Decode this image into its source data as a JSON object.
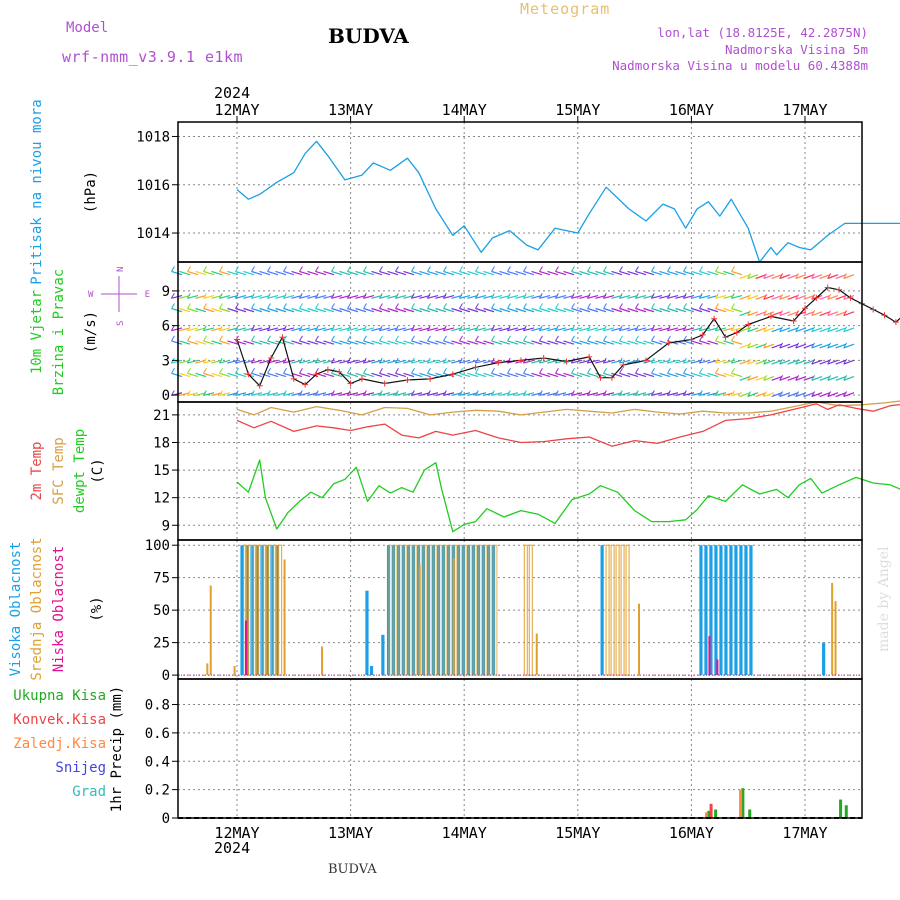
{
  "header": {
    "model_label": "Model",
    "model_name": "wrf-nmm_v3.9.1 e1km",
    "station_title": "BUDVA",
    "product": "Meteogram",
    "coords": "lon,lat (18.8125E, 42.2875N)",
    "elevation": "Nadmorska Visina 5m",
    "model_elevation": "Nadmorska Visina u modelu 60.4388m",
    "year_top": "2024",
    "year_bottom": "2024",
    "bottom_label": "BUDVA",
    "watermark": "made by Angel"
  },
  "colors": {
    "pressure": "#1aa0e6",
    "wind_speed": "#111111",
    "t2m": "#ee4444",
    "tsfc": "#d4a04a",
    "dewpt": "#22cc22",
    "cloud_high": "#1aa0e6",
    "cloud_mid": "#e0a030",
    "cloud_low": "#e01090",
    "precip_total": "#22aa22",
    "precip_conv": "#ee4444",
    "precip_frz": "#ff8844",
    "precip_snow": "#4444dd",
    "precip_grad": "#33bbbb"
  },
  "chart_data": [
    {
      "type": "line",
      "panel": "pressure",
      "ylabel": [
        "Pritisak na nivou mora",
        "(hPa)"
      ],
      "yticks": [
        1014,
        1016,
        1018
      ],
      "ylim": [
        1012.8,
        1018.6
      ],
      "grid": true,
      "x_days": [
        "12MAY",
        "13MAY",
        "14MAY",
        "15MAY",
        "16MAY",
        "17MAY"
      ],
      "series": [
        {
          "name": "Pritisak na nivou mora",
          "x": [
            0,
            0.1,
            0.2,
            0.35,
            0.5,
            0.6,
            0.7,
            0.8,
            0.95,
            1.1,
            1.2,
            1.35,
            1.5,
            1.6,
            1.75,
            1.9,
            2.0,
            2.15,
            2.25,
            2.4,
            2.55,
            2.65,
            2.8,
            3.0,
            3.1,
            3.25,
            3.45,
            3.6,
            3.75,
            3.85,
            3.95,
            4.05,
            4.15,
            4.25,
            4.35,
            4.5,
            4.6,
            4.7,
            4.75,
            4.85,
            4.95,
            5.05,
            5.2,
            5.35,
            5.5,
            5.6,
            5.7,
            5.85,
            5.95
          ],
          "values": [
            1015.8,
            1015.4,
            1015.6,
            1016.1,
            1016.5,
            1017.3,
            1017.8,
            1017.2,
            1016.2,
            1016.4,
            1016.9,
            1016.6,
            1017.1,
            1016.5,
            1015.0,
            1013.9,
            1014.3,
            1013.2,
            1013.8,
            1014.1,
            1013.5,
            1013.3,
            1014.2,
            1014.0,
            1014.8,
            1015.9,
            1015.0,
            1014.5,
            1015.2,
            1015.0,
            1014.2,
            1015.0,
            1015.3,
            1014.7,
            1015.4,
            1014.2,
            1012.8,
            1013.4,
            1013.1,
            1013.6,
            1013.4,
            1013.3,
            1013.9,
            1014.4,
            1014.4,
            1014.4,
            1014.4,
            1014.4,
            1014.4
          ]
        }
      ]
    },
    {
      "type": "line",
      "panel": "wind",
      "ylabel": [
        "10m Vjetar",
        "Brzina i Pravac",
        "(m/s)"
      ],
      "compass": {
        "n": "N",
        "s": "S",
        "e": "E",
        "w": "W"
      },
      "yticks": [
        0,
        3,
        6,
        9
      ],
      "ylim": [
        -0.6,
        11.5
      ],
      "grid": true,
      "series": [
        {
          "name": "Brzina",
          "x": [
            0,
            0.1,
            0.2,
            0.3,
            0.4,
            0.5,
            0.6,
            0.7,
            0.8,
            0.9,
            1.0,
            1.1,
            1.3,
            1.5,
            1.7,
            1.9,
            2.1,
            2.3,
            2.5,
            2.7,
            2.9,
            3.1,
            3.2,
            3.3,
            3.4,
            3.6,
            3.8,
            4.0,
            4.1,
            4.2,
            4.3,
            4.4,
            4.5,
            4.7,
            4.9,
            5.0,
            5.1,
            5.2,
            5.3,
            5.4,
            5.5,
            5.6,
            5.7,
            5.8,
            5.9
          ],
          "values": [
            4.8,
            1.8,
            0.8,
            3.2,
            5.0,
            1.4,
            0.9,
            1.8,
            2.2,
            2.0,
            1.0,
            1.4,
            1.0,
            1.3,
            1.4,
            1.8,
            2.4,
            2.8,
            3.0,
            3.2,
            2.9,
            3.3,
            1.5,
            1.5,
            2.6,
            3.0,
            4.5,
            4.8,
            5.2,
            6.6,
            5.0,
            5.4,
            6.1,
            6.8,
            6.4,
            7.5,
            8.4,
            9.3,
            9.1,
            8.4,
            7.9,
            7.4,
            6.9,
            6.3,
            7.2
          ]
        }
      ]
    },
    {
      "type": "line",
      "panel": "temperature",
      "ylabel": [
        "2m Temp",
        "SFC Temp",
        "dewpt Temp",
        "(C)"
      ],
      "yticks": [
        9,
        12,
        15,
        18,
        21
      ],
      "ylim": [
        7.4,
        22.4
      ],
      "grid": true,
      "series": [
        {
          "name": "2m Temp",
          "x": [
            0,
            0.15,
            0.3,
            0.5,
            0.7,
            0.85,
            1.0,
            1.15,
            1.3,
            1.45,
            1.6,
            1.75,
            1.9,
            2.1,
            2.3,
            2.5,
            2.7,
            2.9,
            3.1,
            3.3,
            3.5,
            3.7,
            3.9,
            4.1,
            4.3,
            4.5,
            4.7,
            4.9,
            5.0,
            5.1,
            5.2,
            5.3,
            5.45,
            5.6,
            5.75,
            5.9
          ],
          "values": [
            20.4,
            19.6,
            20.3,
            19.2,
            19.8,
            19.6,
            19.3,
            19.7,
            20.0,
            18.8,
            18.5,
            19.2,
            18.8,
            19.3,
            18.5,
            18.0,
            18.1,
            18.4,
            18.6,
            17.6,
            18.2,
            17.9,
            18.6,
            19.2,
            20.4,
            20.6,
            21.0,
            21.6,
            21.9,
            22.2,
            21.6,
            22.1,
            21.7,
            21.4,
            22.0,
            22.2
          ]
        },
        {
          "name": "SFC Temp",
          "x": [
            0,
            0.15,
            0.3,
            0.5,
            0.7,
            0.9,
            1.1,
            1.3,
            1.5,
            1.7,
            1.9,
            2.1,
            2.3,
            2.5,
            2.7,
            2.9,
            3.1,
            3.3,
            3.5,
            3.7,
            3.9,
            4.1,
            4.3,
            4.5,
            4.7,
            4.9,
            5.1,
            5.3,
            5.5,
            5.7,
            5.9
          ],
          "values": [
            21.6,
            21.0,
            21.8,
            21.3,
            21.9,
            21.5,
            21.0,
            21.8,
            21.7,
            21.0,
            21.3,
            21.5,
            21.4,
            21.0,
            21.3,
            21.6,
            21.4,
            21.2,
            21.6,
            21.3,
            21.1,
            21.4,
            21.2,
            21.2,
            21.4,
            21.9,
            22.4,
            22.0,
            22.1,
            22.3,
            22.6
          ]
        },
        {
          "name": "dewpt Temp",
          "x": [
            0,
            0.1,
            0.2,
            0.25,
            0.35,
            0.45,
            0.55,
            0.65,
            0.75,
            0.85,
            0.95,
            1.05,
            1.15,
            1.25,
            1.35,
            1.45,
            1.55,
            1.65,
            1.75,
            1.8,
            1.9,
            2.0,
            2.1,
            2.2,
            2.35,
            2.5,
            2.65,
            2.8,
            2.95,
            3.1,
            3.2,
            3.35,
            3.5,
            3.65,
            3.8,
            3.95,
            4.05,
            4.15,
            4.3,
            4.45,
            4.6,
            4.75,
            4.85,
            4.95,
            5.05,
            5.15,
            5.3,
            5.45,
            5.6,
            5.75,
            5.9
          ],
          "values": [
            13.7,
            12.6,
            16.1,
            12.0,
            8.6,
            10.4,
            11.6,
            12.6,
            12.0,
            13.5,
            14.0,
            15.3,
            11.6,
            13.3,
            12.5,
            13.1,
            12.6,
            15.0,
            15.8,
            13.0,
            8.3,
            9.1,
            9.4,
            10.8,
            9.9,
            10.6,
            10.2,
            9.2,
            11.8,
            12.4,
            13.3,
            12.6,
            10.6,
            9.4,
            9.4,
            9.6,
            10.7,
            12.2,
            11.6,
            13.4,
            12.4,
            12.9,
            12.0,
            13.4,
            14.1,
            12.5,
            13.4,
            14.2,
            13.6,
            13.4,
            12.6
          ]
        }
      ]
    },
    {
      "type": "bar",
      "panel": "clouds",
      "ylabel": [
        "Visoka Oblacnost",
        "Srednja Oblacnost",
        "Niska Oblacnost",
        "(%)"
      ],
      "yticks": [
        0,
        25,
        50,
        75,
        100
      ],
      "ylim": [
        -3,
        104
      ],
      "grid": true,
      "series": [
        {
          "name": "Visoka Oblacnost",
          "blocks": [
            [
              0.03,
              0.37,
              100
            ],
            [
              1.13,
              1.15,
              65
            ],
            [
              1.17,
              1.19,
              7
            ],
            [
              1.27,
              1.29,
              31
            ],
            [
              1.32,
              2.28,
              100
            ],
            [
              3.2,
              3.22,
              100
            ],
            [
              4.07,
              4.55,
              100
            ],
            [
              5.15,
              5.17,
              25
            ]
          ]
        },
        {
          "name": "Srednja Oblacnost",
          "blocks": [
            [
              0.05,
              0.37,
              100
            ],
            [
              2.52,
              2.57,
              100
            ],
            [
              3.24,
              3.44,
              100
            ]
          ],
          "spikes": [
            [
              -0.27,
              9
            ],
            [
              -0.24,
              69
            ],
            [
              -0.03,
              7
            ],
            [
              0.41,
              89
            ],
            [
              0.74,
              22
            ],
            [
              2.63,
              32
            ],
            [
              3.53,
              55
            ],
            [
              5.23,
              71
            ],
            [
              5.26,
              57
            ],
            [
              1.6,
              85
            ],
            [
              1.9,
              90
            ]
          ]
        },
        {
          "name": "Niska Oblacnost",
          "spikes": [
            [
              0.07,
              42
            ],
            [
              4.15,
              30
            ],
            [
              4.22,
              12
            ]
          ]
        }
      ]
    },
    {
      "type": "bar",
      "panel": "precipitation",
      "ylabel": [
        "1hr Precip (mm)"
      ],
      "legend": [
        "Ukupna Kisa",
        "Konvek.Kisa",
        "Zaledj.Kisa",
        "Snijeg",
        "Grad"
      ],
      "yticks": [
        0,
        0.2,
        0.4,
        0.6,
        0.8
      ],
      "ylim": [
        0,
        0.98
      ],
      "grid": true,
      "series": [
        {
          "name": "Ukupna Kisa",
          "x": [
            4.14,
            4.2,
            4.44,
            4.5,
            5.3,
            5.35
          ],
          "values": [
            0.05,
            0.06,
            0.21,
            0.06,
            0.13,
            0.09
          ]
        },
        {
          "name": "Konvek.Kisa",
          "x": [
            4.16
          ],
          "values": [
            0.1
          ]
        },
        {
          "name": "Zaledj.Kisa",
          "x": [
            4.12,
            4.42
          ],
          "values": [
            0.04,
            0.2
          ]
        },
        {
          "name": "Snijeg",
          "x": [],
          "values": []
        },
        {
          "name": "Grad",
          "x": [],
          "values": []
        }
      ]
    }
  ]
}
